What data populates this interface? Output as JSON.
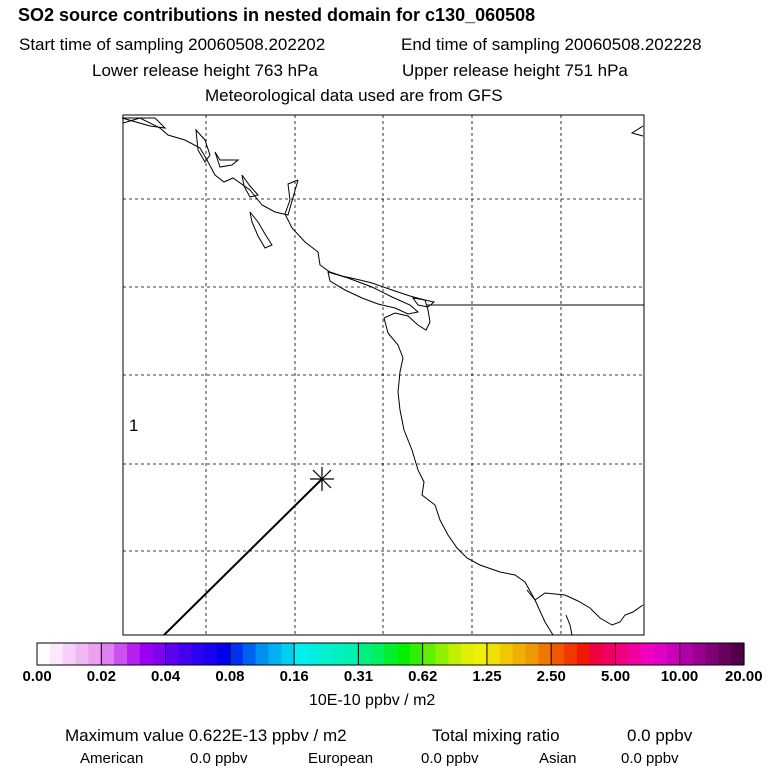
{
  "header": {
    "title": "SO2 source contributions in nested domain for c130_060508",
    "start_label": "Start time of sampling 20060508.202202",
    "end_label": "End time of sampling 20060508.202228",
    "lower_label": "Lower release height  763 hPa",
    "upper_label": "Upper release height  751 hPa",
    "met_label": "Meteorological data used are from GFS"
  },
  "map": {
    "region_marker": "1",
    "colors": {
      "frame": "#000000",
      "grid": "#000000",
      "coast": "#000000",
      "track": "#000000"
    }
  },
  "colorbar": {
    "tick_labels": [
      "0.00",
      "0.02",
      "0.04",
      "0.08",
      "0.16",
      "0.31",
      "0.62",
      "1.25",
      "2.50",
      "5.00",
      "10.00",
      "20.00"
    ],
    "colors": [
      "#ffffff",
      "#fbe8fb",
      "#f6d0f8",
      "#f0b8f4",
      "#eba0f0",
      "#dd80f0",
      "#cc50f0",
      "#b820f0",
      "#9c00f0",
      "#8000f0",
      "#6000f0",
      "#4400f0",
      "#2c00f0",
      "#1800f0",
      "#0000f0",
      "#0030f0",
      "#0060f0",
      "#0090f0",
      "#00b0f0",
      "#00d0f0",
      "#00f0f0",
      "#00f0e0",
      "#00f0d0",
      "#00f0c0",
      "#00f0b0",
      "#00f080",
      "#00f060",
      "#00f030",
      "#00f000",
      "#30f000",
      "#60f000",
      "#90f000",
      "#c0f000",
      "#e0f000",
      "#f0f000",
      "#f0e000",
      "#f0c800",
      "#f0b000",
      "#f09800",
      "#f07800",
      "#f05800",
      "#f03800",
      "#f01800",
      "#f00040",
      "#f00060",
      "#f00080",
      "#f000a0",
      "#f000c0",
      "#e000c8",
      "#c800b8",
      "#b000a8",
      "#980090",
      "#800078",
      "#680060",
      "#500048"
    ],
    "units": "10E-10 ppbv / m2"
  },
  "stats": {
    "max_label": "Maximum value  0.622E-13 ppbv / m2",
    "total_label": "Total mixing ratio",
    "total_value": "0.0 ppbv",
    "american_label": "American",
    "american_value": "0.0 ppbv",
    "european_label": "European",
    "european_value": "0.0 ppbv",
    "asian_label": "Asian",
    "asian_value": "0.0 ppbv"
  }
}
